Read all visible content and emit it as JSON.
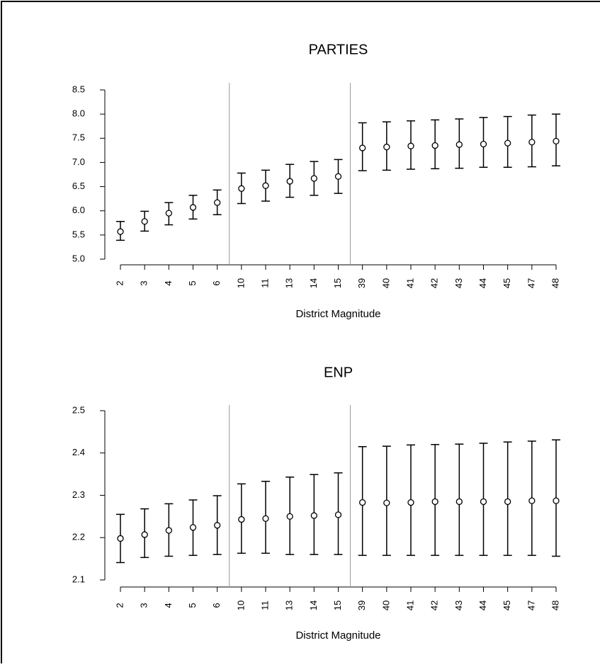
{
  "chart_data": [
    {
      "type": "errorbar",
      "title": "PARTIES",
      "x_label": "District Magnitude",
      "categories": [
        "2",
        "3",
        "4",
        "5",
        "6",
        "10",
        "11",
        "13",
        "14",
        "15",
        "39",
        "40",
        "41",
        "42",
        "43",
        "44",
        "45",
        "47",
        "48"
      ],
      "values": [
        5.57,
        5.78,
        5.95,
        6.07,
        6.17,
        6.46,
        6.52,
        6.61,
        6.67,
        6.71,
        7.3,
        7.32,
        7.34,
        7.35,
        7.37,
        7.38,
        7.4,
        7.42,
        7.44
      ],
      "lower": [
        5.39,
        5.58,
        5.71,
        5.83,
        5.92,
        6.15,
        6.2,
        6.28,
        6.32,
        6.36,
        6.83,
        6.84,
        6.86,
        6.87,
        6.88,
        6.9,
        6.9,
        6.91,
        6.93
      ],
      "upper": [
        5.78,
        5.99,
        6.17,
        6.32,
        6.43,
        6.78,
        6.84,
        6.96,
        7.02,
        7.06,
        7.82,
        7.84,
        7.86,
        7.88,
        7.9,
        7.93,
        7.95,
        7.98,
        8.0
      ],
      "ylim": [
        5,
        8.5
      ],
      "yticks": [
        {
          "value": 5,
          "label": "5.0"
        },
        5.5,
        {
          "value": 6,
          "label": "6.0"
        },
        6.5,
        {
          "value": 7,
          "label": "7.0"
        },
        7.5,
        {
          "value": 8,
          "label": "8.0"
        },
        8.5
      ],
      "color": "#000000"
    },
    {
      "type": "errorbar",
      "title": "ENP",
      "x_label": "District Magnitude",
      "categories": [
        "2",
        "3",
        "4",
        "5",
        "6",
        "10",
        "11",
        "13",
        "14",
        "15",
        "39",
        "40",
        "41",
        "42",
        "43",
        "44",
        "45",
        "47",
        "48"
      ],
      "values": [
        2.198,
        2.207,
        2.217,
        2.224,
        2.229,
        2.243,
        2.245,
        2.25,
        2.252,
        2.254,
        2.283,
        2.282,
        2.283,
        2.285,
        2.285,
        2.285,
        2.285,
        2.287,
        2.287
      ],
      "lower": [
        2.141,
        2.153,
        2.156,
        2.158,
        2.16,
        2.163,
        2.163,
        2.16,
        2.16,
        2.16,
        2.158,
        2.158,
        2.158,
        2.158,
        2.158,
        2.158,
        2.158,
        2.158,
        2.156
      ],
      "upper": [
        2.255,
        2.268,
        2.28,
        2.289,
        2.299,
        2.327,
        2.333,
        2.343,
        2.349,
        2.353,
        2.415,
        2.416,
        2.419,
        2.42,
        2.421,
        2.423,
        2.426,
        2.428,
        2.431
      ],
      "ylim": [
        2.1,
        2.5
      ],
      "yticks": [
        2.1,
        2.2,
        2.3,
        2.4,
        2.5
      ],
      "color": "#000000"
    }
  ]
}
